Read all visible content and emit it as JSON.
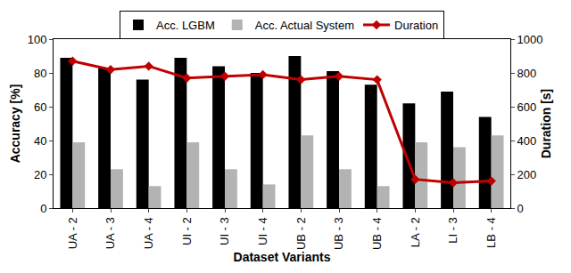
{
  "chart_data": {
    "type": "bar",
    "x_label": "Dataset Variants",
    "y_label": "Accuracy [%]",
    "y2_label": "Duration [s]",
    "categories": [
      "UA - 2",
      "UA - 3",
      "UA - 4",
      "UI - 2",
      "UI - 3",
      "UI - 4",
      "UB - 2",
      "UB - 3",
      "UB - 4",
      "LA - 2",
      "LI - 3",
      "LB - 4"
    ],
    "series": [
      {
        "name": "Acc. LGBM",
        "type": "bar",
        "color": "#000000",
        "values": [
          89,
          83,
          76,
          89,
          84,
          80,
          90,
          81,
          73,
          62,
          69,
          54
        ]
      },
      {
        "name": "Acc. Actual System",
        "type": "bar",
        "color": "#b3b3b3",
        "values": [
          39,
          23,
          13,
          39,
          23,
          14,
          43,
          23,
          13,
          39,
          36,
          43
        ]
      },
      {
        "name": "Duration",
        "type": "line",
        "axis": "y2",
        "color": "#c00000",
        "marker": "diamond",
        "line_style": "solid",
        "values": [
          870,
          820,
          840,
          770,
          780,
          790,
          760,
          780,
          760,
          170,
          150,
          160
        ]
      }
    ],
    "ylim": [
      0,
      100
    ],
    "yticks": [
      0,
      20,
      40,
      60,
      80,
      100
    ],
    "y2lim": [
      0,
      1000
    ],
    "y2ticks": [
      0,
      200,
      400,
      600,
      800,
      1000
    ],
    "grid": false,
    "legend": "top"
  }
}
